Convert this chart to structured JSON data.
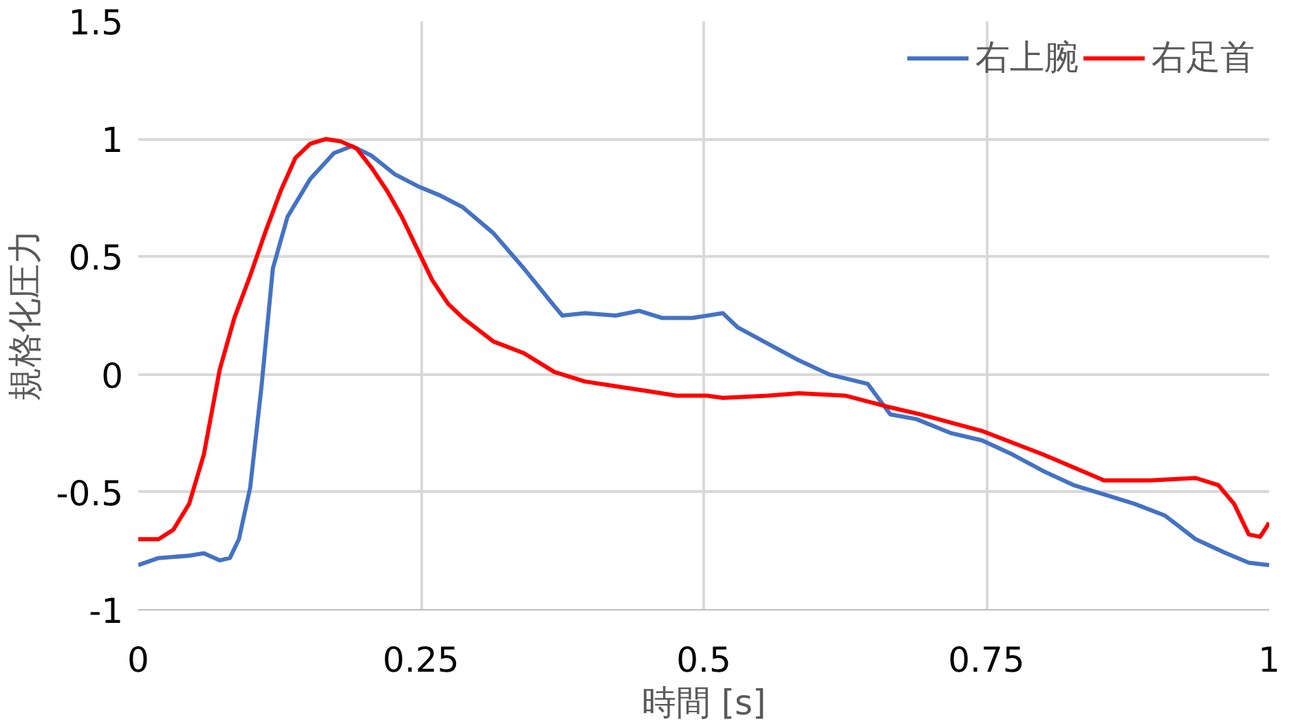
{
  "chart_data": {
    "type": "line",
    "xlabel": "時間 [s]",
    "ylabel": "規格化圧力",
    "xlim": [
      0,
      1
    ],
    "xticks": [
      0,
      0.25,
      0.5,
      0.75,
      1
    ],
    "ylim": [
      -1,
      1.5
    ],
    "yticks": [
      -1,
      -0.5,
      0,
      0.5,
      1,
      1.5
    ],
    "grid": true,
    "legend": "top right",
    "line_style": "solid",
    "marker": "none",
    "series": [
      {
        "name": "右上腕",
        "color": "#4472c4",
        "x": [
          0,
          0.018,
          0.045,
          0.058,
          0.072,
          0.081,
          0.089,
          0.099,
          0.109,
          0.119,
          0.132,
          0.152,
          0.173,
          0.189,
          0.206,
          0.227,
          0.247,
          0.267,
          0.287,
          0.314,
          0.341,
          0.368,
          0.375,
          0.395,
          0.422,
          0.443,
          0.463,
          0.49,
          0.517,
          0.53,
          0.557,
          0.584,
          0.611,
          0.645,
          0.665,
          0.688,
          0.719,
          0.746,
          0.773,
          0.8,
          0.827,
          0.854,
          0.881,
          0.908,
          0.935,
          0.962,
          0.982,
          1
        ],
        "values": [
          -0.81,
          -0.78,
          -0.77,
          -0.76,
          -0.79,
          -0.78,
          -0.7,
          -0.48,
          -0.05,
          0.45,
          0.67,
          0.83,
          0.94,
          0.97,
          0.93,
          0.85,
          0.8,
          0.76,
          0.71,
          0.6,
          0.45,
          0.29,
          0.25,
          0.26,
          0.25,
          0.27,
          0.24,
          0.24,
          0.26,
          0.2,
          0.13,
          0.06,
          0.0,
          -0.04,
          -0.17,
          -0.19,
          -0.25,
          -0.28,
          -0.34,
          -0.41,
          -0.47,
          -0.51,
          -0.55,
          -0.6,
          -0.7,
          -0.76,
          -0.8,
          -0.81
        ]
      },
      {
        "name": "右足首",
        "color": "#ff0000",
        "x": [
          0,
          0.018,
          0.031,
          0.045,
          0.058,
          0.072,
          0.085,
          0.099,
          0.112,
          0.126,
          0.139,
          0.152,
          0.166,
          0.179,
          0.193,
          0.206,
          0.22,
          0.233,
          0.247,
          0.26,
          0.274,
          0.287,
          0.314,
          0.341,
          0.368,
          0.395,
          0.422,
          0.449,
          0.476,
          0.503,
          0.517,
          0.557,
          0.584,
          0.625,
          0.665,
          0.692,
          0.746,
          0.8,
          0.854,
          0.895,
          0.935,
          0.955,
          0.969,
          0.982,
          0.992,
          1
        ],
        "values": [
          -0.7,
          -0.7,
          -0.66,
          -0.55,
          -0.34,
          0.02,
          0.24,
          0.42,
          0.6,
          0.78,
          0.92,
          0.98,
          1.0,
          0.99,
          0.96,
          0.88,
          0.78,
          0.67,
          0.53,
          0.4,
          0.3,
          0.24,
          0.14,
          0.09,
          0.01,
          -0.03,
          -0.05,
          -0.07,
          -0.09,
          -0.09,
          -0.1,
          -0.09,
          -0.08,
          -0.09,
          -0.14,
          -0.17,
          -0.24,
          -0.34,
          -0.45,
          -0.45,
          -0.44,
          -0.47,
          -0.55,
          -0.68,
          -0.69,
          -0.63
        ]
      }
    ]
  }
}
